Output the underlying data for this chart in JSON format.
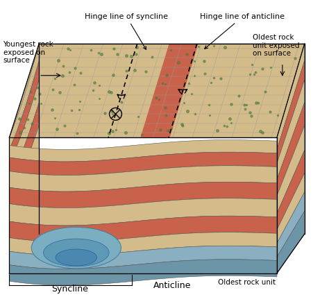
{
  "title": "Syncline Anticline",
  "background_color": "#ffffff",
  "labels": {
    "hinge_syncline": "Hinge line of syncline",
    "hinge_anticline": "Hinge line of anticline",
    "youngest_rock": "Youngest rock\nexposed on\nsurface",
    "oldest_rock_surface": "Oldest rock\nunit exposed\non surface",
    "syncline": "Syncline",
    "anticline": "Anticline",
    "oldest_rock_unit": "Oldest rock unit"
  },
  "colors": {
    "tan_light": "#d4bc8a",
    "tan_mid": "#c8a96a",
    "tan_dark": "#b8956a",
    "orange_red": "#c8624a",
    "blue_gray_light": "#8aafc0",
    "blue_gray_dark": "#6d95a8",
    "blue_syncline": "#7aaec0",
    "blue_syncline2": "#5e99b5",
    "green_veg": "#4a7a3a",
    "edge_color": "#555555",
    "line_color": "#999999",
    "black": "#000000"
  }
}
